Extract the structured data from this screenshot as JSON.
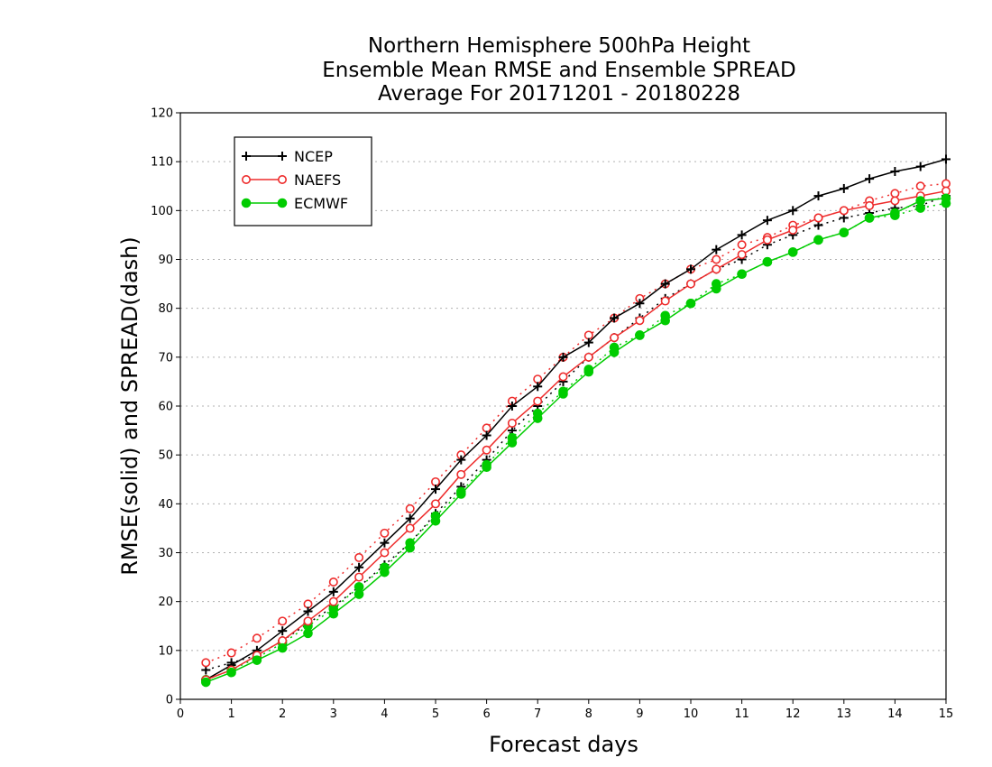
{
  "chart_data": {
    "type": "line",
    "title": [
      "Northern Hemisphere 500hPa Height",
      "Ensemble Mean RMSE and Ensemble SPREAD",
      "Average For 20171201 - 20180228"
    ],
    "xlabel": "Forecast days",
    "ylabel": "RMSE(solid) and SPREAD(dash)",
    "xlim": [
      0,
      15
    ],
    "ylim": [
      0,
      120
    ],
    "xticks": [
      "0",
      "1",
      "2",
      "3",
      "4",
      "5",
      "6",
      "7",
      "8",
      "9",
      "10",
      "11",
      "12",
      "13",
      "14",
      "15"
    ],
    "yticks": [
      "0",
      "10",
      "20",
      "30",
      "40",
      "50",
      "60",
      "70",
      "80",
      "90",
      "100",
      "110",
      "120"
    ],
    "grid": "horizontal dotted",
    "legend_position": "top-left",
    "x": [
      0.5,
      1,
      1.5,
      2,
      2.5,
      3,
      3.5,
      4,
      4.5,
      5,
      5.5,
      6,
      6.5,
      7,
      7.5,
      8,
      8.5,
      9,
      9.5,
      10,
      10.5,
      11,
      11.5,
      12,
      12.5,
      13,
      13.5,
      14,
      14.5,
      15
    ],
    "series": [
      {
        "name": "NCEP",
        "color": "#000000",
        "marker": "plus",
        "rmse": [
          4,
          7,
          10,
          14,
          18,
          22,
          27,
          32,
          37,
          43,
          49,
          54,
          60,
          64,
          70,
          73,
          78,
          81,
          85,
          88,
          92,
          95,
          98,
          100,
          103,
          104.5,
          106.5,
          108,
          109,
          110.5
        ],
        "spread": [
          6,
          7.5,
          9,
          12,
          15.5,
          19,
          23,
          27.5,
          32,
          38,
          43.5,
          49,
          55,
          60,
          65,
          70,
          74,
          78,
          82,
          85,
          88,
          90,
          93,
          95,
          97,
          98.5,
          99.5,
          100.5,
          101,
          103
        ]
      },
      {
        "name": "NAEFS",
        "color": "#ee2c2c",
        "marker": "open-circle",
        "rmse": [
          4,
          6,
          9,
          12,
          16,
          20,
          25,
          30,
          35,
          40,
          46,
          51,
          56.5,
          61,
          66,
          70,
          74,
          77.5,
          81.5,
          85,
          88,
          91,
          94,
          96,
          98.5,
          100,
          101,
          102,
          103,
          104
        ],
        "spread": [
          7.5,
          9.5,
          12.5,
          16,
          19.5,
          24,
          29,
          34,
          39,
          44.5,
          50,
          55.5,
          61,
          65.5,
          70,
          74.5,
          78,
          82,
          85,
          88,
          90,
          93,
          94.5,
          97,
          98.5,
          100,
          102,
          103.5,
          105,
          105.5
        ]
      },
      {
        "name": "ECMWF",
        "color": "#00cc00",
        "marker": "filled-circle",
        "rmse": [
          3.5,
          5.5,
          8,
          10.5,
          13.5,
          17.5,
          21.5,
          26,
          31,
          36.5,
          42,
          47.5,
          52.5,
          57.5,
          62.5,
          67,
          71,
          74.5,
          77.5,
          81,
          84,
          87,
          89.5,
          91.5,
          94,
          95.5,
          98.5,
          99.5,
          102,
          102.5
        ],
        "spread": [
          4,
          6,
          8.5,
          11.5,
          15,
          18.5,
          23,
          27,
          32,
          37.5,
          42.5,
          48,
          53.5,
          58.5,
          63,
          67.5,
          72,
          74.5,
          78.5,
          81,
          85,
          87,
          89.5,
          91.5,
          94,
          95.5,
          98.5,
          99,
          100.5,
          101.5
        ]
      }
    ]
  }
}
